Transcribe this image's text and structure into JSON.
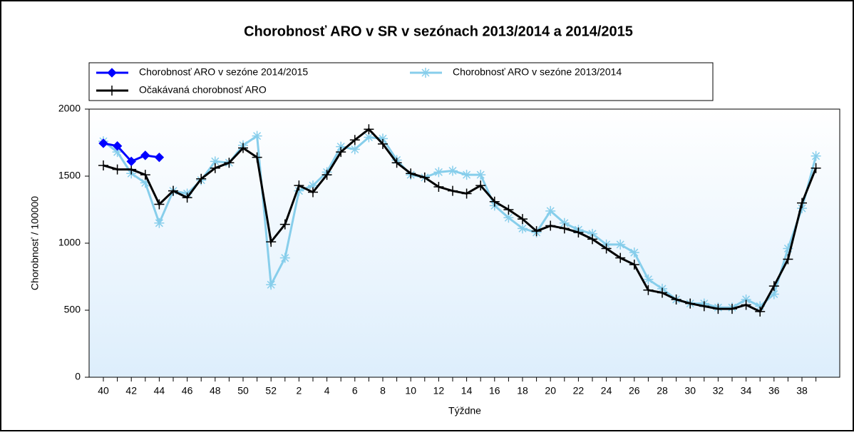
{
  "chart_data": {
    "type": "line",
    "title": "Chorobnosť ARO v SR v sezónach 2013/2014 a 2014/2015",
    "x_label": "Týždne",
    "y_label": "Chorobnosť / 100000",
    "categories": [
      "40",
      null,
      "42",
      null,
      "44",
      null,
      "46",
      null,
      "48",
      null,
      "50",
      null,
      "52",
      null,
      "2",
      null,
      "4",
      null,
      "6",
      null,
      "8",
      null,
      "10",
      null,
      "12",
      null,
      "14",
      null,
      "16",
      null,
      "18",
      null,
      "20",
      null,
      "22",
      null,
      "24",
      null,
      "26",
      null,
      "28",
      null,
      "30",
      null,
      "32",
      null,
      "34",
      null,
      "36",
      null,
      "38",
      null
    ],
    "series": [
      {
        "name": "Chorobnosť ARO v sezóne 2014/2015",
        "color": "#0000ff",
        "marker": "diamond",
        "values": [
          1745,
          1725,
          1610,
          1655,
          1640,
          null,
          null,
          null,
          null,
          null,
          null,
          null,
          null,
          null,
          null,
          null,
          null,
          null,
          null,
          null,
          null,
          null,
          null,
          null,
          null,
          null,
          null,
          null,
          null,
          null,
          null,
          null,
          null,
          null,
          null,
          null,
          null,
          null,
          null,
          null,
          null,
          null,
          null,
          null,
          null,
          null,
          null,
          null,
          null,
          null,
          null,
          null
        ]
      },
      {
        "name": "Chorobnosť ARO v sezóne 2013/2014",
        "color": "#87ceeb",
        "marker": "star",
        "values": [
          1760,
          1680,
          1520,
          1450,
          1150,
          1390,
          1370,
          1470,
          1610,
          1600,
          1730,
          1800,
          690,
          890,
          1390,
          1430,
          1530,
          1720,
          1700,
          1790,
          1780,
          1620,
          1510,
          1490,
          1530,
          1540,
          1510,
          1510,
          1280,
          1190,
          1110,
          1080,
          1240,
          1150,
          1100,
          1070,
          990,
          990,
          930,
          730,
          660,
          580,
          550,
          550,
          520,
          520,
          580,
          530,
          620,
          960,
          1260,
          1650
        ]
      },
      {
        "name": "Očakávaná chorobnosť ARO",
        "color": "#000000",
        "marker": "plus",
        "values": [
          1580,
          1550,
          1550,
          1510,
          1290,
          1390,
          1340,
          1480,
          1560,
          1600,
          1710,
          1640,
          1010,
          1140,
          1430,
          1380,
          1510,
          1680,
          1770,
          1850,
          1740,
          1600,
          1520,
          1490,
          1420,
          1390,
          1370,
          1430,
          1310,
          1250,
          1180,
          1090,
          1130,
          1110,
          1080,
          1030,
          960,
          890,
          840,
          650,
          630,
          580,
          550,
          530,
          510,
          510,
          540,
          490,
          680,
          880,
          1300,
          1560
        ]
      }
    ],
    "ylim": [
      0,
      2000
    ],
    "yticks": [
      0,
      500,
      1000,
      1500,
      2000
    ]
  }
}
